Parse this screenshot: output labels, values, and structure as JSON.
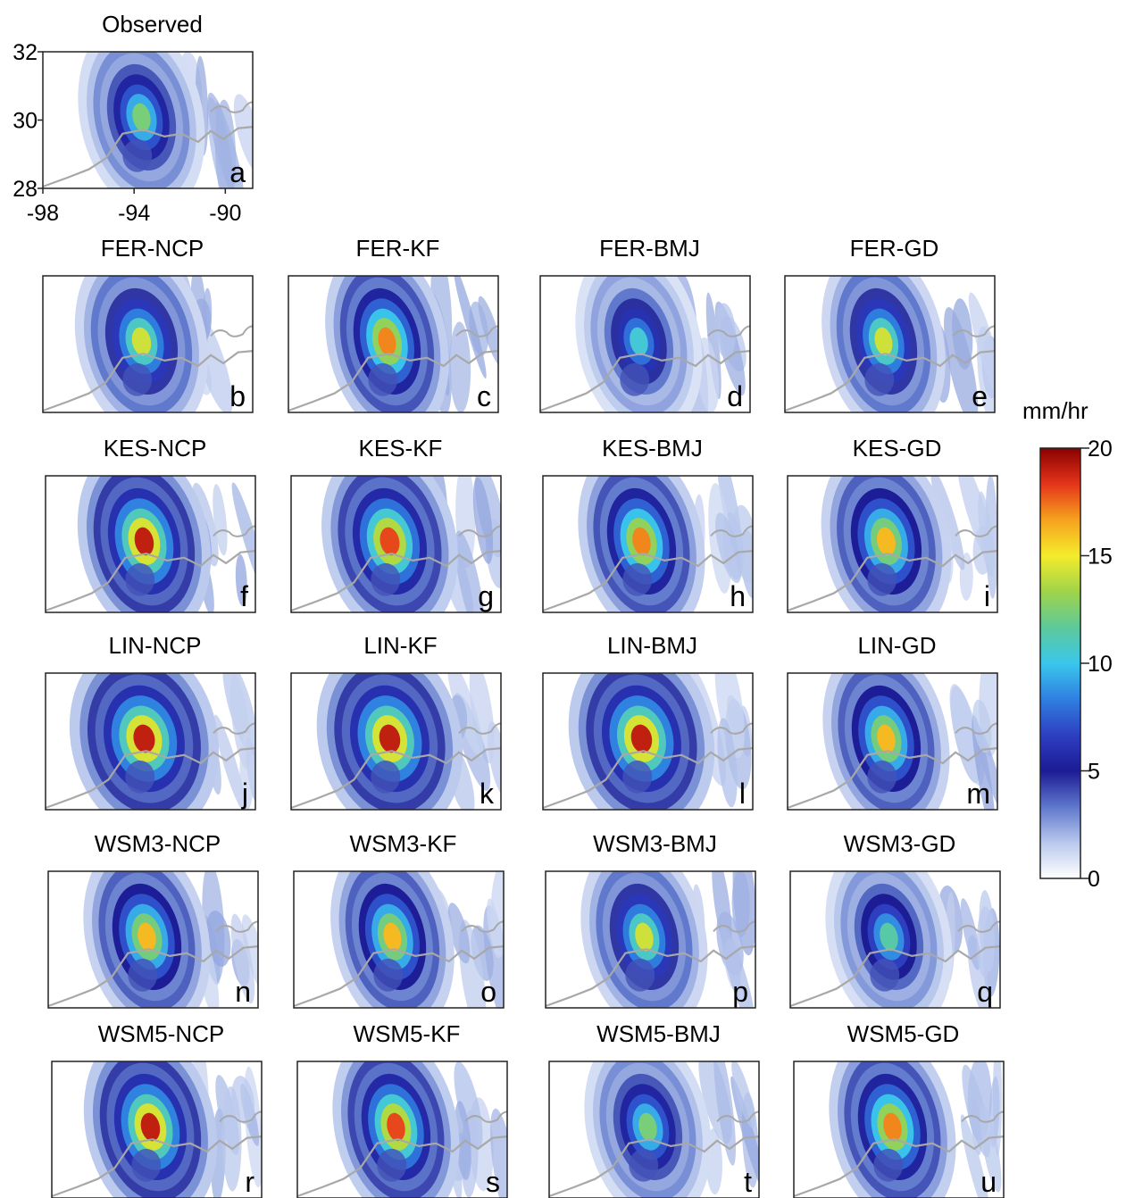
{
  "chart_data": {
    "type": "heatmap",
    "colorbar": {
      "label": "mm/hr",
      "min": 0,
      "max": 20,
      "ticks": [
        "0",
        "5",
        "10",
        "15",
        "20"
      ],
      "stops": [
        "#ffffff",
        "#b9c8ec",
        "#5e77cc",
        "#1c1b94",
        "#2e3fc2",
        "#2f7fe0",
        "#3ac7ec",
        "#5ec99a",
        "#9fd44a",
        "#f4ec2c",
        "#f6a21e",
        "#e4351a",
        "#8a0000"
      ]
    },
    "axes": {
      "lat_ticks": [
        "32",
        "30",
        "28"
      ],
      "lon_ticks": [
        "-98",
        "-94",
        "-90"
      ],
      "lat_range": [
        28,
        32
      ],
      "lon_range": [
        -98,
        -88.8
      ]
    },
    "panels": [
      {
        "title": "Observed",
        "letter": "a",
        "peak": 13,
        "spread": 0.6
      },
      {
        "title": "FER-NCP",
        "letter": "b",
        "peak": 15,
        "spread": 0.7
      },
      {
        "title": "FER-KF",
        "letter": "c",
        "peak": 18,
        "spread": 0.55
      },
      {
        "title": "FER-BMJ",
        "letter": "d",
        "peak": 11,
        "spread": 0.6
      },
      {
        "title": "FER-GD",
        "letter": "e",
        "peak": 15,
        "spread": 0.55
      },
      {
        "title": "KES-NCP",
        "letter": "f",
        "peak": 20,
        "spread": 0.7
      },
      {
        "title": "KES-KF",
        "letter": "g",
        "peak": 19,
        "spread": 0.75
      },
      {
        "title": "KES-BMJ",
        "letter": "h",
        "peak": 18,
        "spread": 0.6
      },
      {
        "title": "KES-GD",
        "letter": "i",
        "peak": 17,
        "spread": 0.65
      },
      {
        "title": "LIN-NCP",
        "letter": "j",
        "peak": 20,
        "spread": 0.95
      },
      {
        "title": "LIN-KF",
        "letter": "k",
        "peak": 20,
        "spread": 0.9
      },
      {
        "title": "LIN-BMJ",
        "letter": "l",
        "peak": 20,
        "spread": 0.9
      },
      {
        "title": "LIN-GD",
        "letter": "m",
        "peak": 17,
        "spread": 0.6
      },
      {
        "title": "WSM3-NCP",
        "letter": "n",
        "peak": 17,
        "spread": 0.6
      },
      {
        "title": "WSM3-KF",
        "letter": "o",
        "peak": 17,
        "spread": 0.55
      },
      {
        "title": "WSM3-BMJ",
        "letter": "p",
        "peak": 15,
        "spread": 0.6
      },
      {
        "title": "WSM3-GD",
        "letter": "q",
        "peak": 12,
        "spread": 0.6
      },
      {
        "title": "WSM5-NCP",
        "letter": "r",
        "peak": 20,
        "spread": 0.7
      },
      {
        "title": "WSM5-KF",
        "letter": "s",
        "peak": 19,
        "spread": 0.6
      },
      {
        "title": "WSM5-BMJ",
        "letter": "t",
        "peak": 13,
        "spread": 0.6
      },
      {
        "title": "WSM5-GD",
        "letter": "u",
        "peak": 18,
        "spread": 0.6
      }
    ]
  }
}
